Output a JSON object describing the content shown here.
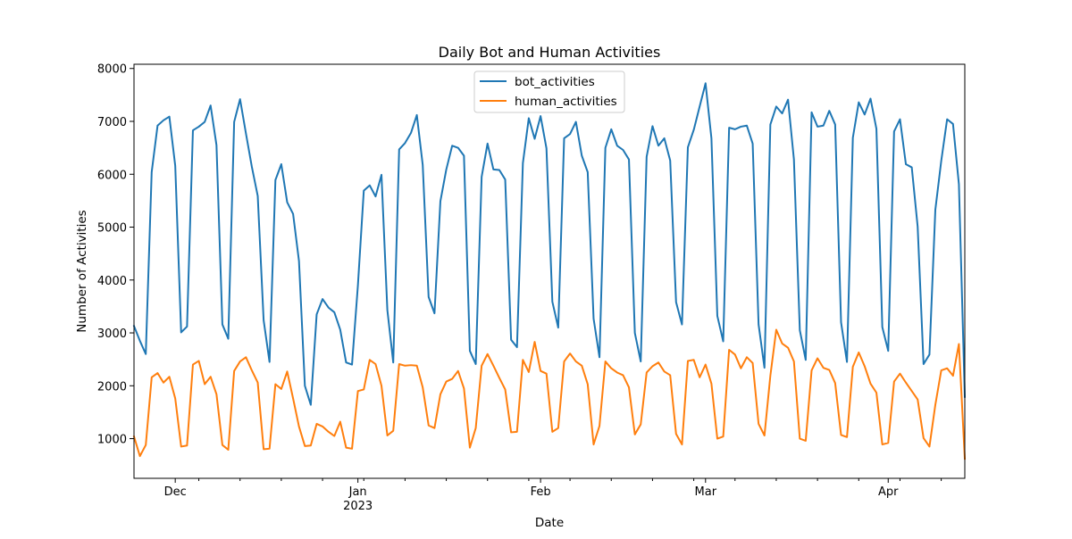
{
  "chart_data": {
    "type": "line",
    "title": "Daily Bot and Human Activities",
    "xlabel": "Date",
    "ylabel": "Number of Activities",
    "legend_position": "top-center",
    "grid": false,
    "x_range": [
      "2022-11-24",
      "2023-04-14"
    ],
    "ylim": [
      250,
      8080
    ],
    "y_ticks": [
      1000,
      2000,
      3000,
      4000,
      5000,
      6000,
      7000,
      8000
    ],
    "x_ticks": [
      {
        "date": "2022-12-01",
        "label": "Dec",
        "sublabel": ""
      },
      {
        "date": "2023-01-01",
        "label": "Jan",
        "sublabel": "2023"
      },
      {
        "date": "2023-02-01",
        "label": "Feb",
        "sublabel": ""
      },
      {
        "date": "2023-03-01",
        "label": "Mar",
        "sublabel": ""
      },
      {
        "date": "2023-04-01",
        "label": "Apr",
        "sublabel": ""
      }
    ],
    "x_minor_tick_dates": [
      "2022-12-05",
      "2022-12-12",
      "2022-12-19",
      "2022-12-26",
      "2023-01-02",
      "2023-01-09",
      "2023-01-16",
      "2023-01-23",
      "2023-01-30",
      "2023-02-06",
      "2023-02-13",
      "2023-02-20",
      "2023-02-27",
      "2023-03-06",
      "2023-03-13",
      "2023-03-20",
      "2023-03-27",
      "2023-04-03",
      "2023-04-10"
    ],
    "start_date": "2022-11-24",
    "colors": {
      "bot_activities": "#1f77b4",
      "human_activities": "#ff7f0e"
    },
    "series": [
      {
        "name": "bot_activities",
        "values": [
          3130,
          2850,
          2600,
          6040,
          6920,
          7020,
          7090,
          6160,
          3010,
          3120,
          6830,
          6900,
          6990,
          7300,
          6550,
          3160,
          2890,
          6990,
          7420,
          6770,
          6140,
          5590,
          3240,
          2450,
          5890,
          6190,
          5470,
          5250,
          4360,
          2000,
          1640,
          3350,
          3640,
          3480,
          3390,
          3060,
          2440,
          2400,
          3900,
          5690,
          5790,
          5580,
          5990,
          3430,
          2440,
          6470,
          6590,
          6780,
          7120,
          6180,
          3680,
          3370,
          5490,
          6090,
          6540,
          6500,
          6350,
          2660,
          2410,
          5950,
          6580,
          6090,
          6080,
          5900,
          2870,
          2730,
          6210,
          7060,
          6670,
          7100,
          6490,
          3590,
          3100,
          6680,
          6760,
          6990,
          6350,
          6040,
          3270,
          2540,
          6500,
          6850,
          6540,
          6460,
          6280,
          3000,
          2460,
          6330,
          6910,
          6540,
          6680,
          6260,
          3580,
          3160,
          6510,
          6840,
          7280,
          7720,
          6680,
          3320,
          2840,
          6880,
          6850,
          6900,
          6920,
          6580,
          3160,
          2340,
          6940,
          7280,
          7150,
          7410,
          6280,
          3050,
          2490,
          7170,
          6900,
          6920,
          7200,
          6940,
          3200,
          2450,
          6690,
          7360,
          7130,
          7430,
          6860,
          3110,
          2660,
          6810,
          7040,
          6190,
          6130,
          5010,
          2410,
          2590,
          5330,
          6250,
          7040,
          6950,
          5810,
          1790
        ]
      },
      {
        "name": "human_activities",
        "values": [
          1040,
          670,
          880,
          2160,
          2240,
          2060,
          2170,
          1760,
          850,
          870,
          2400,
          2470,
          2030,
          2170,
          1840,
          880,
          790,
          2280,
          2460,
          2540,
          2290,
          2060,
          800,
          810,
          2030,
          1940,
          2270,
          1760,
          1230,
          860,
          870,
          1280,
          1230,
          1130,
          1050,
          1320,
          830,
          810,
          1900,
          1930,
          2490,
          2410,
          2000,
          1060,
          1150,
          2410,
          2380,
          2390,
          2380,
          1970,
          1250,
          1200,
          1840,
          2080,
          2130,
          2280,
          1950,
          830,
          1200,
          2380,
          2600,
          2380,
          2150,
          1930,
          1120,
          1130,
          2490,
          2260,
          2830,
          2280,
          2230,
          1130,
          1200,
          2460,
          2610,
          2460,
          2380,
          2030,
          890,
          1240,
          2460,
          2330,
          2250,
          2200,
          1970,
          1080,
          1270,
          2250,
          2370,
          2440,
          2270,
          2200,
          1090,
          890,
          2470,
          2490,
          2160,
          2400,
          2040,
          1000,
          1040,
          2680,
          2590,
          2330,
          2540,
          2430,
          1280,
          1060,
          2190,
          3060,
          2800,
          2720,
          2460,
          1000,
          960,
          2290,
          2520,
          2340,
          2300,
          2050,
          1070,
          1030,
          2360,
          2630,
          2370,
          2040,
          1870,
          890,
          920,
          2080,
          2230,
          2060,
          1900,
          1740,
          1010,
          850,
          1640,
          2290,
          2330,
          2190,
          2790,
          620
        ]
      }
    ]
  }
}
